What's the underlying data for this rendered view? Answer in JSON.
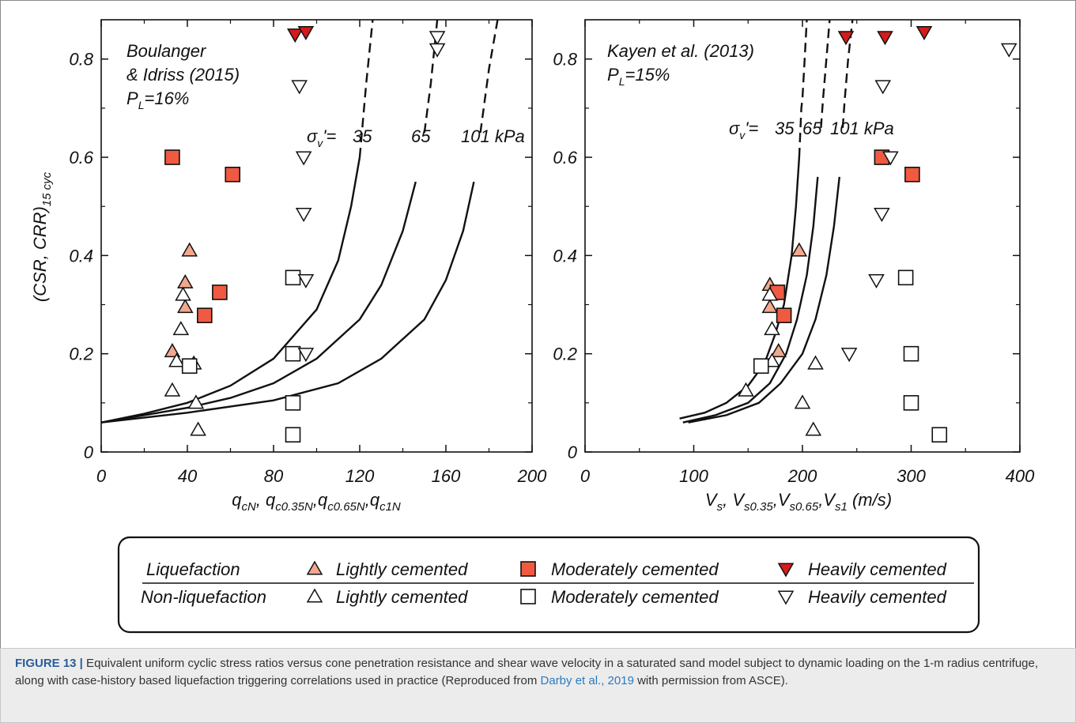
{
  "chart_data": [
    {
      "type": "scatter",
      "panel": "left",
      "annotation": [
        "Boulanger",
        "& Idriss (2015)",
        "P",
        "L",
        "=16%"
      ],
      "xlabel_parts": [
        "q",
        "cN",
        ", q",
        "c0.35N",
        ",q",
        "c0.65N",
        ",q",
        "c1N"
      ],
      "ylabel": "(CSR, CRR)",
      "ylabel_sub": "15 cyc",
      "xlim": [
        0,
        200
      ],
      "ylim": [
        0,
        0.88
      ],
      "xticks": [
        "0",
        "40",
        "80",
        "120",
        "160",
        "200"
      ],
      "yticks": [
        "0",
        "0.2",
        "0.4",
        "0.6",
        "0.8"
      ],
      "curve_labels": [
        "35",
        "65",
        "101 kPa"
      ],
      "stress_label": "σ",
      "stress_sub": "v",
      "stress_eq": "'= ",
      "curves": [
        {
          "name": "35",
          "points": [
            [
              0,
              0.06
            ],
            [
              20,
              0.078
            ],
            [
              40,
              0.1
            ],
            [
              60,
              0.135
            ],
            [
              80,
              0.19
            ],
            [
              100,
              0.29
            ],
            [
              110,
              0.39
            ],
            [
              116,
              0.5
            ],
            [
              120,
              0.6
            ],
            [
              123,
              0.75
            ],
            [
              126,
              0.88
            ]
          ]
        },
        {
          "name": "65",
          "points": [
            [
              0,
              0.06
            ],
            [
              20,
              0.075
            ],
            [
              40,
              0.09
            ],
            [
              60,
              0.11
            ],
            [
              80,
              0.14
            ],
            [
              100,
              0.19
            ],
            [
              120,
              0.27
            ],
            [
              130,
              0.34
            ],
            [
              140,
              0.45
            ],
            [
              146,
              0.55
            ],
            [
              150,
              0.65
            ],
            [
              153,
              0.75
            ],
            [
              156,
              0.88
            ]
          ]
        },
        {
          "name": "101 kPa",
          "points": [
            [
              0,
              0.06
            ],
            [
              40,
              0.08
            ],
            [
              80,
              0.105
            ],
            [
              110,
              0.14
            ],
            [
              130,
              0.19
            ],
            [
              150,
              0.27
            ],
            [
              160,
              0.35
            ],
            [
              168,
              0.45
            ],
            [
              173,
              0.55
            ],
            [
              176,
              0.65
            ],
            [
              180,
              0.78
            ],
            [
              184,
              0.88
            ]
          ]
        }
      ],
      "series": [
        {
          "name": "Liquefaction Lightly cemented",
          "marker": "triangle-up",
          "fill": "#f2a88e",
          "points": [
            [
              41,
              0.41
            ],
            [
              39,
              0.345
            ],
            [
              39,
              0.295
            ],
            [
              33,
              0.205
            ]
          ]
        },
        {
          "name": "Liquefaction Moderately cemented",
          "marker": "square",
          "fill": "#ef5a41",
          "points": [
            [
              33,
              0.6
            ],
            [
              61,
              0.565
            ],
            [
              55,
              0.325
            ],
            [
              48,
              0.278
            ]
          ]
        },
        {
          "name": "Liquefaction Heavily cemented",
          "marker": "triangle-down",
          "fill": "#d41c1c",
          "points": [
            [
              90,
              0.85
            ],
            [
              95,
              0.855
            ]
          ]
        },
        {
          "name": "Non-liquefaction Lightly cemented",
          "marker": "triangle-up",
          "fill": "#ffffff",
          "points": [
            [
              38,
              0.32
            ],
            [
              37,
              0.25
            ],
            [
              35,
              0.185
            ],
            [
              43,
              0.18
            ],
            [
              33,
              0.125
            ],
            [
              44,
              0.1
            ],
            [
              45,
              0.045
            ]
          ]
        },
        {
          "name": "Non-liquefaction Moderately cemented",
          "marker": "square",
          "fill": "#ffffff",
          "points": [
            [
              41,
              0.175
            ],
            [
              89,
              0.355
            ],
            [
              89,
              0.2
            ],
            [
              89,
              0.1
            ],
            [
              89,
              0.035
            ]
          ]
        },
        {
          "name": "Non-liquefaction Heavily cemented",
          "marker": "triangle-down",
          "fill": "#ffffff",
          "points": [
            [
              156,
              0.845
            ],
            [
              156,
              0.82
            ],
            [
              92,
              0.745
            ],
            [
              94,
              0.6
            ],
            [
              94,
              0.485
            ],
            [
              95,
              0.35
            ],
            [
              95,
              0.2
            ]
          ]
        }
      ]
    },
    {
      "type": "scatter",
      "panel": "right",
      "annotation": [
        "Kayen et al. (2013)",
        "P",
        "L",
        "=15%"
      ],
      "xlabel_parts": [
        "V",
        "s",
        ", V",
        "s0.35",
        ",V",
        "s0.65",
        ",V",
        "s1",
        " (m/s)"
      ],
      "xlim": [
        0,
        400
      ],
      "ylim": [
        0,
        0.88
      ],
      "xticks": [
        "0",
        "100",
        "200",
        "300",
        "400"
      ],
      "curve_labels": [
        "35",
        "65",
        "101 kPa"
      ],
      "stress_label": "σ",
      "stress_sub": "v",
      "stress_eq": "'= ",
      "curves": [
        {
          "name": "35",
          "points": [
            [
              87,
              0.068
            ],
            [
              110,
              0.08
            ],
            [
              130,
              0.1
            ],
            [
              150,
              0.135
            ],
            [
              165,
              0.18
            ],
            [
              175,
              0.24
            ],
            [
              183,
              0.3
            ],
            [
              190,
              0.4
            ],
            [
              194,
              0.5
            ],
            [
              197,
              0.6
            ],
            [
              199,
              0.7
            ],
            [
              200,
              0.72
            ],
            [
              202,
              0.8
            ],
            [
              204,
              0.88
            ]
          ]
        },
        {
          "name": "65",
          "points": [
            [
              90,
              0.06
            ],
            [
              120,
              0.075
            ],
            [
              150,
              0.1
            ],
            [
              170,
              0.14
            ],
            [
              185,
              0.2
            ],
            [
              195,
              0.27
            ],
            [
              204,
              0.36
            ],
            [
              210,
              0.46
            ],
            [
              214,
              0.56
            ],
            [
              217,
              0.66
            ],
            [
              219,
              0.72
            ],
            [
              222,
              0.8
            ],
            [
              225,
              0.88
            ]
          ]
        },
        {
          "name": "101 kPa",
          "points": [
            [
              95,
              0.06
            ],
            [
              130,
              0.075
            ],
            [
              160,
              0.1
            ],
            [
              180,
              0.14
            ],
            [
              200,
              0.2
            ],
            [
              212,
              0.27
            ],
            [
              222,
              0.36
            ],
            [
              229,
              0.46
            ],
            [
              234,
              0.56
            ],
            [
              237,
              0.66
            ],
            [
              239,
              0.72
            ],
            [
              242,
              0.8
            ],
            [
              246,
              0.88
            ]
          ]
        }
      ],
      "series": [
        {
          "name": "Liquefaction Lightly cemented",
          "marker": "triangle-up",
          "fill": "#f2a88e",
          "points": [
            [
              197,
              0.41
            ],
            [
              170,
              0.34
            ],
            [
              170,
              0.295
            ],
            [
              178,
              0.205
            ]
          ]
        },
        {
          "name": "Liquefaction Moderately cemented",
          "marker": "square",
          "fill": "#ef5a41",
          "points": [
            [
              273,
              0.6
            ],
            [
              301,
              0.565
            ],
            [
              177,
              0.325
            ],
            [
              183,
              0.278
            ]
          ]
        },
        {
          "name": "Liquefaction Heavily cemented",
          "marker": "triangle-down",
          "fill": "#d41c1c",
          "points": [
            [
              240,
              0.845
            ],
            [
              276,
              0.845
            ],
            [
              312,
              0.855
            ]
          ]
        },
        {
          "name": "Non-liquefaction Lightly cemented",
          "marker": "triangle-up",
          "fill": "#ffffff",
          "points": [
            [
              170,
              0.32
            ],
            [
              172,
              0.25
            ],
            [
              172,
              0.185
            ],
            [
              212,
              0.18
            ],
            [
              148,
              0.125
            ],
            [
              200,
              0.1
            ],
            [
              210,
              0.045
            ]
          ]
        },
        {
          "name": "Non-liquefaction Moderately cemented",
          "marker": "square",
          "fill": "#ffffff",
          "points": [
            [
              162,
              0.175
            ],
            [
              295,
              0.355
            ],
            [
              300,
              0.2
            ],
            [
              300,
              0.1
            ],
            [
              326,
              0.035
            ]
          ]
        },
        {
          "name": "Non-liquefaction Heavily cemented",
          "marker": "triangle-down",
          "fill": "#ffffff",
          "points": [
            [
              390,
              0.82
            ],
            [
              274,
              0.745
            ],
            [
              281,
              0.6
            ],
            [
              273,
              0.485
            ],
            [
              268,
              0.35
            ],
            [
              243,
              0.2
            ]
          ]
        }
      ]
    }
  ],
  "legend": {
    "row1": {
      "group": "Liquefaction",
      "items": [
        "Lightly cemented",
        "Moderately cemented",
        "Heavily cemented"
      ]
    },
    "row2": {
      "group": "Non-liquefaction",
      "items": [
        "Lightly cemented",
        "Moderately cemented",
        "Heavily cemented"
      ]
    }
  },
  "caption": {
    "label": "FIGURE 13 |",
    "text": " Equivalent uniform cyclic stress ratios versus cone penetration resistance and shear wave velocity in a saturated sand model subject to dynamic loading on the 1-m radius centrifuge, along with case-history based liquefaction triggering correlations used in practice (Reproduced from ",
    "link": "Darby et al., 2019",
    "text_end": " with permission from ASCE)."
  }
}
